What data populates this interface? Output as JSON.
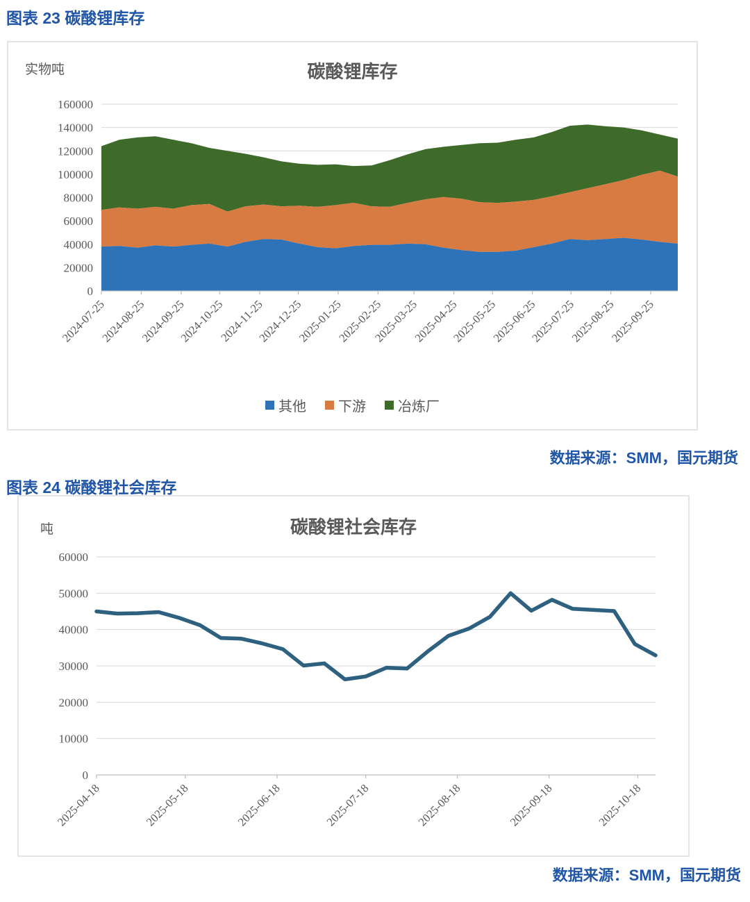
{
  "page": {
    "figure23_heading": "图表 23 碳酸锂库存",
    "figure24_heading": "图表 24 碳酸锂社会库存",
    "source_label_1": "数据来源：SMM，国元期货",
    "source_label_2": "数据来源：SMM，国元期货"
  },
  "colors": {
    "heading_blue": "#2156a6",
    "axis_text": "#595959",
    "gridline": "#d9d9d9",
    "axis_line": "#bfbfbf",
    "series_blue": "#2e73b8",
    "series_orange": "#d87b42",
    "series_green": "#3e6b29",
    "line_teal": "#2e617f"
  },
  "chart_data": [
    {
      "type": "area",
      "stacked": true,
      "title": "碳酸锂库存",
      "unit_label": "实物吨",
      "grid": true,
      "legend_position": "bottom",
      "ylim": [
        0,
        160000
      ],
      "ytick_step": 20000,
      "xticks": [
        "2024-07-25",
        "2024-08-25",
        "2024-09-25",
        "2024-10-25",
        "2024-11-25",
        "2024-12-25",
        "2025-01-25",
        "2025-02-25",
        "2025-03-25",
        "2025-04-25",
        "2025-05-25",
        "2025-06-25",
        "2025-07-25",
        "2025-08-25",
        "2025-09-25"
      ],
      "x": [
        "2024-07-25",
        "2024-08-08",
        "2024-08-22",
        "2024-09-05",
        "2024-09-19",
        "2024-10-03",
        "2024-10-17",
        "2024-10-31",
        "2024-11-14",
        "2024-11-28",
        "2024-12-12",
        "2024-12-26",
        "2025-01-09",
        "2025-01-23",
        "2025-02-06",
        "2025-02-20",
        "2025-03-06",
        "2025-03-20",
        "2025-04-03",
        "2025-04-17",
        "2025-05-01",
        "2025-05-15",
        "2025-05-29",
        "2025-06-12",
        "2025-06-26",
        "2025-07-10",
        "2025-07-24",
        "2025-08-07",
        "2025-08-21",
        "2025-09-04",
        "2025-09-18",
        "2025-10-02",
        "2025-10-16"
      ],
      "series": [
        {
          "name": "其他",
          "color": "#2e73b8",
          "values": [
            38000,
            38500,
            37000,
            39000,
            38000,
            39500,
            40500,
            38000,
            42000,
            44500,
            44000,
            40500,
            37500,
            36500,
            38500,
            39500,
            39500,
            40500,
            40000,
            37000,
            35000,
            33500,
            33500,
            34500,
            37500,
            40500,
            44500,
            43500,
            44500,
            45500,
            44000,
            42000,
            40500
          ]
        },
        {
          "name": "下游",
          "color": "#d87b42",
          "values": [
            31500,
            33000,
            33500,
            33000,
            32500,
            34000,
            34000,
            30000,
            30500,
            29500,
            28500,
            32500,
            34500,
            37000,
            37000,
            33000,
            32500,
            35000,
            38500,
            43500,
            44000,
            42500,
            42000,
            42000,
            40500,
            40500,
            40000,
            44500,
            47000,
            49500,
            55500,
            61000,
            57500
          ]
        },
        {
          "name": "冶炼厂",
          "color": "#3e6b29",
          "values": [
            54500,
            58000,
            61000,
            60500,
            59000,
            53000,
            48000,
            52000,
            45000,
            40500,
            38500,
            36000,
            36000,
            35000,
            31500,
            35000,
            40000,
            41500,
            43000,
            43000,
            46000,
            50500,
            51500,
            53000,
            53500,
            55000,
            57000,
            54500,
            49500,
            45000,
            38000,
            31000,
            32500
          ]
        }
      ]
    },
    {
      "type": "line",
      "stacked": false,
      "title": "碳酸锂社会库存",
      "unit_label": "吨",
      "grid": true,
      "legend_position": "none",
      "ylim": [
        0,
        60000
      ],
      "ytick_step": 10000,
      "xticks": [
        "2025-04-18",
        "2025-05-18",
        "2025-06-18",
        "2025-07-18",
        "2025-08-18",
        "2025-09-18",
        "2025-10-18"
      ],
      "x": [
        "2025-04-18",
        "2025-04-25",
        "2025-05-02",
        "2025-05-09",
        "2025-05-16",
        "2025-05-23",
        "2025-05-30",
        "2025-06-06",
        "2025-06-13",
        "2025-06-20",
        "2025-06-27",
        "2025-07-04",
        "2025-07-11",
        "2025-07-18",
        "2025-07-25",
        "2025-08-01",
        "2025-08-08",
        "2025-08-15",
        "2025-08-22",
        "2025-08-29",
        "2025-09-05",
        "2025-09-12",
        "2025-09-19",
        "2025-09-26",
        "2025-10-03",
        "2025-10-10",
        "2025-10-17",
        "2025-10-24"
      ],
      "series": [
        {
          "name": "碳酸锂社会库存",
          "color": "#2e617f",
          "values": [
            45000,
            44400,
            44500,
            44800,
            43200,
            41200,
            37700,
            37500,
            36200,
            34600,
            30100,
            30700,
            26300,
            27100,
            29500,
            29300,
            34000,
            38300,
            40300,
            43500,
            50000,
            45200,
            48200,
            45700,
            45400,
            45100,
            36000,
            32900
          ]
        }
      ]
    }
  ]
}
